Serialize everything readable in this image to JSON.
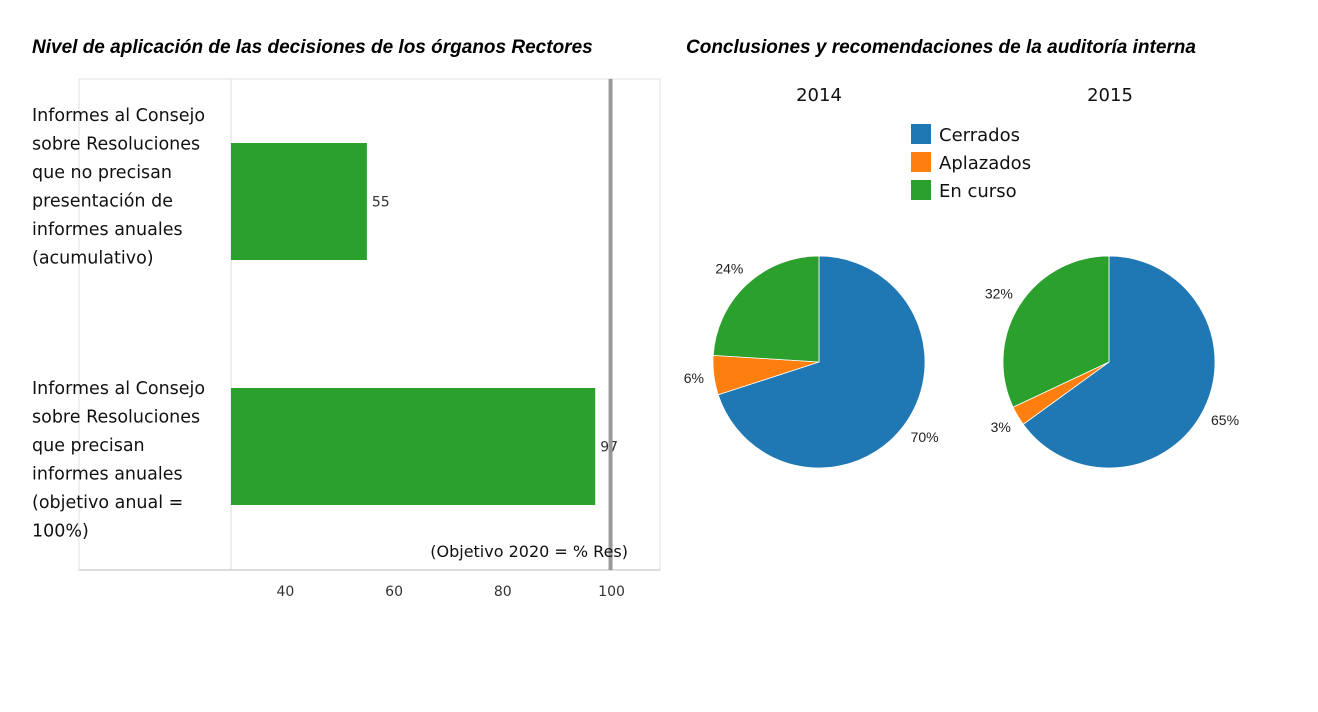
{
  "chart_data": [
    {
      "type": "bar",
      "orientation": "horizontal",
      "title": "Nivel de aplicación de las decisiones de los órganos Rectores",
      "categories": [
        "Informes al Consejo sobre Resoluciones que no precisan presentación de informes anuales (acumulativo)",
        "Informes al Consejo sobre Resoluciones que precisan informes anuales (objetivo anual = 100%)"
      ],
      "category_lines": [
        [
          "Informes al Consejo",
          "sobre Resoluciones",
          "que no precisan",
          "presentación de",
          "informes anuales",
          "(acumulativo)"
        ],
        [
          "Informes al Consejo",
          "sobre Resoluciones",
          "que precisan",
          "informes anuales",
          "(objetivo anual =",
          "100%)"
        ]
      ],
      "values": [
        55,
        97
      ],
      "value_labels": [
        "55",
        "97"
      ],
      "xlim": [
        30,
        104.5
      ],
      "xticks": [
        40,
        60,
        80,
        100
      ],
      "xtick_labels": [
        "40",
        "60",
        "80",
        "100"
      ],
      "target_line": {
        "value": 100,
        "label": "(Objetivo 2020 = % Res)"
      },
      "bar_color": "#2ca02c",
      "target_color": "#999999",
      "grid": false
    },
    {
      "type": "pie",
      "group_title": "Conclusiones y recomendaciones de la auditoría interna",
      "legend": {
        "placement": "top-center",
        "entries": [
          "Cerrados",
          "Aplazados",
          "En curso"
        ],
        "colors": [
          "#1f77b4",
          "#ff7f0e",
          "#2ca02c"
        ]
      },
      "pies": [
        {
          "title": "2014",
          "labels": [
            "Cerrados",
            "Aplazados",
            "En curso"
          ],
          "values": [
            70,
            6,
            24
          ],
          "value_labels": [
            "70%",
            "6%",
            "24%"
          ]
        },
        {
          "title": "2015",
          "labels": [
            "Cerrados",
            "Aplazados",
            "En curso"
          ],
          "values": [
            65,
            3,
            32
          ],
          "value_labels": [
            "65%",
            "3%",
            "32%"
          ]
        }
      ]
    }
  ]
}
